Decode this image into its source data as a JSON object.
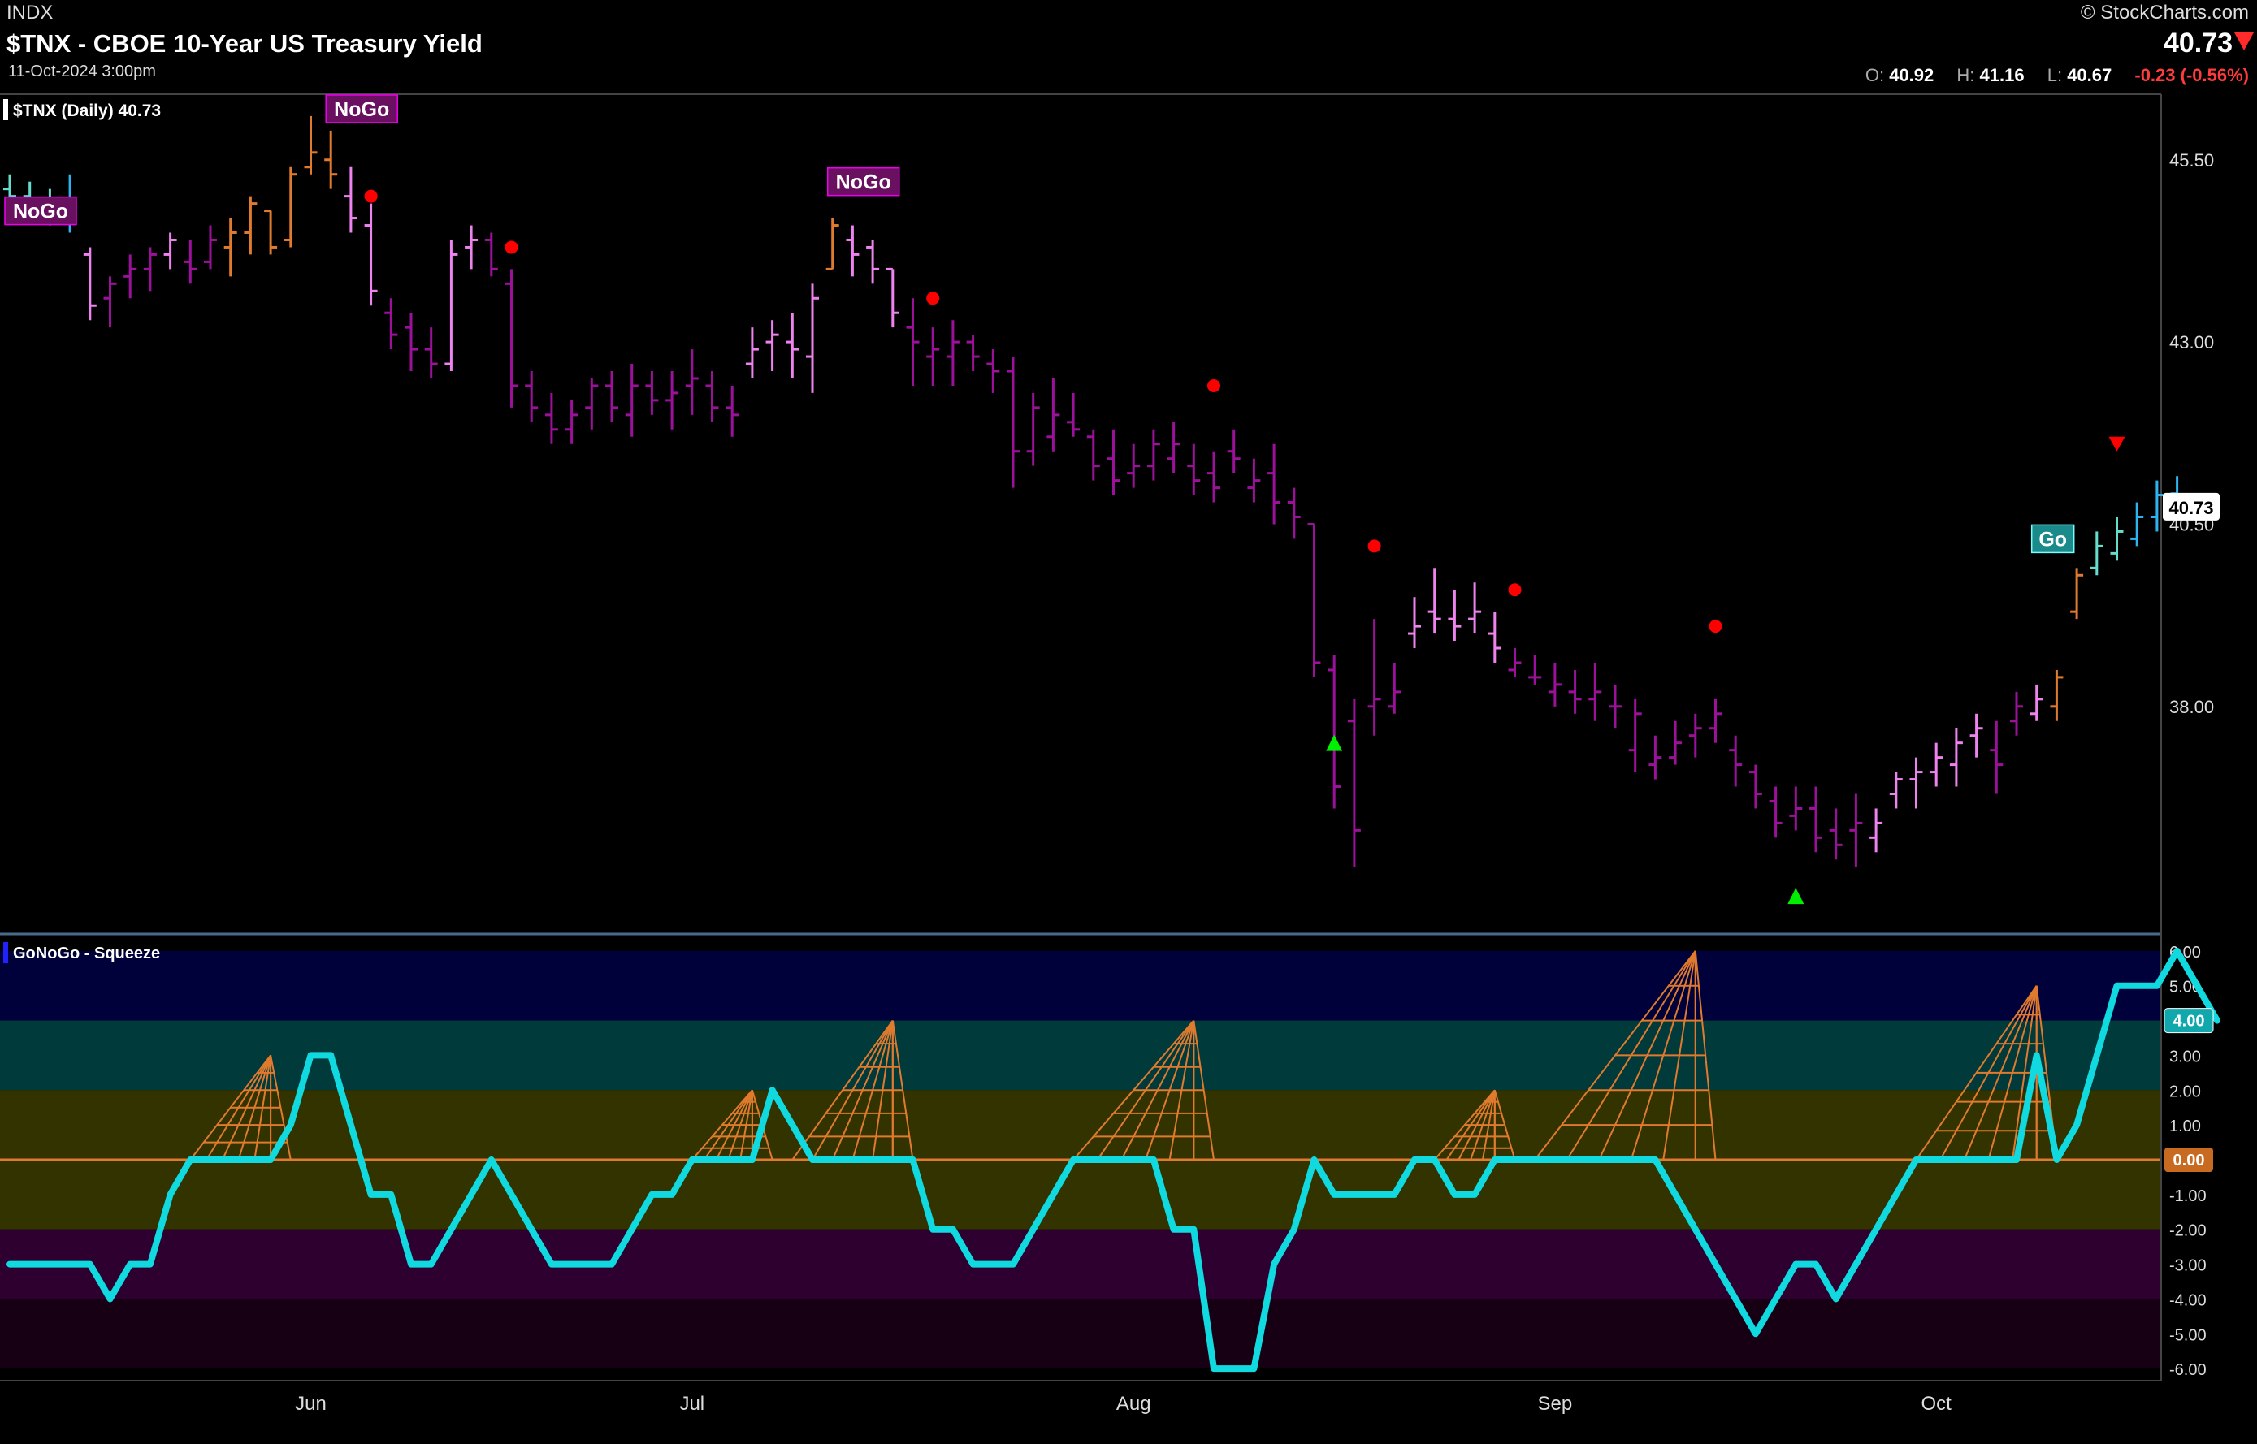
{
  "header": {
    "exchange": "INDX",
    "title": "$TNX - CBOE 10-Year US Treasury Yield",
    "date": "11-Oct-2024 3:00pm",
    "brand": "© StockCharts.com",
    "last": "40.73",
    "ohlc": {
      "o_label": "O:",
      "o": "40.92",
      "h_label": "H:",
      "h": "41.16",
      "l_label": "L:",
      "l": "40.67",
      "change": "-0.23 (-0.56%)"
    }
  },
  "colors": {
    "background": "#000000",
    "strong_nogo": "#9b119a",
    "weak_nogo": "#ee82ee",
    "nogo_amber": "#e07a2e",
    "weak_go": "#66ddcc",
    "strong_go": "#2db3f0",
    "oscillator": "#11d9e0",
    "squeeze": "#e07a2e",
    "zero_line": "#e07a2e",
    "down_dot": "#ff0000",
    "up_triangle": "#00ee00"
  },
  "chart_data": [
    {
      "type": "ohlc",
      "title": "$TNX (Daily) 40.73",
      "ylim": [
        34.9,
        46.4
      ],
      "yticks": [
        38.0,
        43.0,
        45.5
      ],
      "yticks_partial": [
        40.5
      ],
      "price_badge": "40.73",
      "xticks": [
        {
          "label": "Jun",
          "bar": 15
        },
        {
          "label": "Jul",
          "bar": 34
        },
        {
          "label": "Aug",
          "bar": 56
        },
        {
          "label": "Sep",
          "bar": 77
        },
        {
          "label": "Oct",
          "bar": 96
        }
      ],
      "bars": [
        [
          45.1,
          45.3,
          44.8,
          45.0,
          "wgo"
        ],
        [
          45.0,
          45.2,
          44.7,
          44.9,
          "wgo"
        ],
        [
          44.9,
          45.1,
          44.6,
          44.8,
          "wgo"
        ],
        [
          44.8,
          45.3,
          44.5,
          44.7,
          "sgo"
        ],
        [
          44.2,
          44.3,
          43.3,
          43.5,
          "wnogo"
        ],
        [
          43.6,
          43.9,
          43.2,
          43.8,
          "snogo"
        ],
        [
          43.9,
          44.2,
          43.6,
          44.0,
          "snogo"
        ],
        [
          44.0,
          44.3,
          43.7,
          44.2,
          "snogo"
        ],
        [
          44.2,
          44.5,
          44.0,
          44.4,
          "wnogo"
        ],
        [
          44.1,
          44.4,
          43.8,
          44.0,
          "snogo"
        ],
        [
          44.1,
          44.6,
          44.0,
          44.4,
          "snogo"
        ],
        [
          44.3,
          44.7,
          43.9,
          44.5,
          "amber"
        ],
        [
          44.5,
          45.0,
          44.2,
          44.9,
          "amber"
        ],
        [
          44.8,
          44.8,
          44.2,
          44.3,
          "amber"
        ],
        [
          44.4,
          45.4,
          44.3,
          45.3,
          "amber"
        ],
        [
          45.4,
          46.1,
          45.3,
          45.6,
          "amber"
        ],
        [
          45.5,
          45.9,
          45.1,
          45.3,
          "amber"
        ],
        [
          45.0,
          45.4,
          44.5,
          44.7,
          "wnogo"
        ],
        [
          44.6,
          44.9,
          43.5,
          43.7,
          "wnogo"
        ],
        [
          43.4,
          43.6,
          42.9,
          43.1,
          "snogo"
        ],
        [
          43.2,
          43.4,
          42.6,
          42.9,
          "snogo"
        ],
        [
          42.9,
          43.2,
          42.5,
          42.7,
          "snogo"
        ],
        [
          42.7,
          44.4,
          42.6,
          44.2,
          "wnogo"
        ],
        [
          44.3,
          44.6,
          44.0,
          44.4,
          "wnogo"
        ],
        [
          44.4,
          44.5,
          43.9,
          44.0,
          "snogo"
        ],
        [
          43.8,
          44.0,
          42.1,
          42.4,
          "snogo"
        ],
        [
          42.4,
          42.6,
          41.9,
          42.1,
          "snogo"
        ],
        [
          42.0,
          42.3,
          41.6,
          41.8,
          "snogo"
        ],
        [
          41.8,
          42.2,
          41.6,
          42.0,
          "snogo"
        ],
        [
          42.1,
          42.5,
          41.8,
          42.4,
          "snogo"
        ],
        [
          42.4,
          42.6,
          41.9,
          42.1,
          "snogo"
        ],
        [
          42.0,
          42.7,
          41.7,
          42.4,
          "snogo"
        ],
        [
          42.4,
          42.6,
          42.0,
          42.2,
          "snogo"
        ],
        [
          42.2,
          42.6,
          41.8,
          42.3,
          "snogo"
        ],
        [
          42.4,
          42.9,
          42.0,
          42.5,
          "snogo"
        ],
        [
          42.4,
          42.6,
          41.9,
          42.1,
          "snogo"
        ],
        [
          42.1,
          42.4,
          41.7,
          42.0,
          "snogo"
        ],
        [
          42.7,
          43.2,
          42.5,
          42.9,
          "wnogo"
        ],
        [
          43.0,
          43.3,
          42.6,
          43.1,
          "wnogo"
        ],
        [
          43.0,
          43.4,
          42.5,
          42.9,
          "wnogo"
        ],
        [
          42.8,
          43.8,
          42.3,
          43.6,
          "wnogo"
        ],
        [
          44.0,
          44.7,
          44.0,
          44.6,
          "amber"
        ],
        [
          44.4,
          44.6,
          43.9,
          44.2,
          "wnogo"
        ],
        [
          44.3,
          44.4,
          43.8,
          44.0,
          "wnogo"
        ],
        [
          44.0,
          44.0,
          43.2,
          43.4,
          "wnogo"
        ],
        [
          43.2,
          43.6,
          42.4,
          43.0,
          "snogo"
        ],
        [
          42.8,
          43.2,
          42.4,
          42.9,
          "snogo"
        ],
        [
          42.8,
          43.3,
          42.4,
          43.0,
          "snogo"
        ],
        [
          43.0,
          43.1,
          42.6,
          42.8,
          "snogo"
        ],
        [
          42.7,
          42.9,
          42.3,
          42.6,
          "snogo"
        ],
        [
          42.6,
          42.8,
          41.0,
          41.5,
          "snogo"
        ],
        [
          41.5,
          42.3,
          41.3,
          42.1,
          "snogo"
        ],
        [
          41.7,
          42.5,
          41.5,
          42.0,
          "snogo"
        ],
        [
          41.9,
          42.3,
          41.7,
          41.8,
          "snogo"
        ],
        [
          41.7,
          41.8,
          41.1,
          41.3,
          "snogo"
        ],
        [
          41.4,
          41.8,
          40.9,
          41.1,
          "snogo"
        ],
        [
          41.2,
          41.6,
          41.0,
          41.3,
          "snogo"
        ],
        [
          41.3,
          41.8,
          41.1,
          41.6,
          "snogo"
        ],
        [
          41.4,
          41.9,
          41.2,
          41.6,
          "snogo"
        ],
        [
          41.3,
          41.6,
          40.9,
          41.1,
          "snogo"
        ],
        [
          41.2,
          41.5,
          40.8,
          41.0,
          "snogo"
        ],
        [
          41.5,
          41.8,
          41.2,
          41.4,
          "snogo"
        ],
        [
          41.0,
          41.4,
          40.8,
          41.1,
          "snogo"
        ],
        [
          41.2,
          41.6,
          40.5,
          40.8,
          "snogo"
        ],
        [
          40.8,
          41.0,
          40.3,
          40.6,
          "snogo"
        ],
        [
          40.5,
          40.5,
          38.4,
          38.6,
          "snogo"
        ],
        [
          38.5,
          38.7,
          36.6,
          36.9,
          "snogo"
        ],
        [
          37.8,
          38.1,
          35.8,
          36.3,
          "snogo"
        ],
        [
          38.0,
          39.2,
          37.6,
          38.1,
          "snogo"
        ],
        [
          38.0,
          38.6,
          37.9,
          38.2,
          "snogo"
        ],
        [
          39.0,
          39.5,
          38.8,
          39.1,
          "wnogo"
        ],
        [
          39.3,
          39.9,
          39.0,
          39.2,
          "wnogo"
        ],
        [
          39.2,
          39.6,
          38.9,
          39.1,
          "wnogo"
        ],
        [
          39.2,
          39.7,
          39.0,
          39.3,
          "wnogo"
        ],
        [
          39.0,
          39.3,
          38.6,
          38.8,
          "wnogo"
        ],
        [
          38.5,
          38.8,
          38.4,
          38.6,
          "snogo"
        ],
        [
          38.4,
          38.7,
          38.3,
          38.4,
          "snogo"
        ],
        [
          38.2,
          38.6,
          38.0,
          38.3,
          "snogo"
        ],
        [
          38.2,
          38.5,
          37.9,
          38.1,
          "snogo"
        ],
        [
          38.1,
          38.6,
          37.8,
          38.2,
          "snogo"
        ],
        [
          38.0,
          38.3,
          37.7,
          38.0,
          "snogo"
        ],
        [
          37.4,
          38.1,
          37.1,
          37.9,
          "snogo"
        ],
        [
          37.2,
          37.6,
          37.0,
          37.3,
          "snogo"
        ],
        [
          37.3,
          37.8,
          37.2,
          37.5,
          "snogo"
        ],
        [
          37.6,
          37.9,
          37.3,
          37.7,
          "snogo"
        ],
        [
          37.7,
          38.1,
          37.5,
          37.9,
          "snogo"
        ],
        [
          37.4,
          37.6,
          36.9,
          37.2,
          "snogo"
        ],
        [
          37.1,
          37.2,
          36.6,
          36.8,
          "snogo"
        ],
        [
          36.7,
          36.9,
          36.2,
          36.4,
          "snogo"
        ],
        [
          36.5,
          36.9,
          36.3,
          36.6,
          "snogo"
        ],
        [
          36.6,
          36.9,
          36.0,
          36.2,
          "snogo"
        ],
        [
          36.3,
          36.6,
          35.9,
          36.1,
          "snogo"
        ],
        [
          36.3,
          36.8,
          35.8,
          36.4,
          "snogo"
        ],
        [
          36.2,
          36.6,
          36.0,
          36.4,
          "wnogo"
        ],
        [
          36.8,
          37.1,
          36.6,
          37.0,
          "wnogo"
        ],
        [
          37.0,
          37.3,
          36.6,
          37.1,
          "wnogo"
        ],
        [
          37.1,
          37.5,
          36.9,
          37.3,
          "wnogo"
        ],
        [
          37.2,
          37.7,
          36.9,
          37.5,
          "wnogo"
        ],
        [
          37.6,
          37.9,
          37.3,
          37.7,
          "wnogo"
        ],
        [
          37.4,
          37.8,
          36.8,
          37.2,
          "snogo"
        ],
        [
          37.8,
          38.2,
          37.6,
          38.0,
          "snogo"
        ],
        [
          37.9,
          38.3,
          37.8,
          38.1,
          "wnogo"
        ],
        [
          38.0,
          38.5,
          37.8,
          38.4,
          "amber"
        ],
        [
          39.3,
          39.9,
          39.2,
          39.8,
          "amber"
        ],
        [
          39.9,
          40.4,
          39.8,
          40.2,
          "wgo"
        ],
        [
          40.1,
          40.6,
          40.0,
          40.4,
          "wgo"
        ],
        [
          40.3,
          40.8,
          40.2,
          40.6,
          "sgo"
        ],
        [
          40.6,
          41.1,
          40.4,
          40.9,
          "sgo"
        ],
        [
          40.92,
          41.16,
          40.67,
          40.73,
          "sgo"
        ]
      ],
      "badges": [
        {
          "label": "NoGo",
          "bar": 0,
          "price": 44.8
        },
        {
          "label": "NoGo",
          "bar": 16,
          "price": 46.2
        },
        {
          "label": "NoGo",
          "bar": 41,
          "price": 45.2
        },
        {
          "label": "Go",
          "bar": 101,
          "price": 40.3
        }
      ],
      "down_dots": [
        {
          "bar": 18,
          "price": 45.0
        },
        {
          "bar": 25,
          "price": 44.3
        },
        {
          "bar": 46,
          "price": 43.6
        },
        {
          "bar": 60,
          "price": 42.4
        },
        {
          "bar": 68,
          "price": 40.2
        },
        {
          "bar": 75,
          "price": 39.6
        },
        {
          "bar": 85,
          "price": 39.1
        }
      ],
      "down_triangles": [
        {
          "bar": 105,
          "price": 41.6
        }
      ],
      "up_triangles": [
        {
          "bar": 66,
          "price": 37.5
        },
        {
          "bar": 89,
          "price": 35.4
        }
      ]
    },
    {
      "type": "line",
      "title": "GoNoGo - Squeeze",
      "ylim": [
        -6.3,
        6.3
      ],
      "yticks": [
        6,
        5,
        4,
        3,
        2,
        1,
        0,
        -1,
        -2,
        -3,
        -4,
        -5,
        -6
      ],
      "ytick_labels": [
        "6.00",
        "5.00",
        "4.00",
        "3.00",
        "2.00",
        "1.00",
        "0.00",
        "-1.00",
        "-2.00",
        "-3.00",
        "-4.00",
        "-5.00",
        "-6.00"
      ],
      "value_badge": "4.00",
      "zero_badge": "0.00",
      "zones": [
        {
          "from": 4,
          "to": 6,
          "color": "#00003a"
        },
        {
          "from": 2,
          "to": 4,
          "color": "#003a3a"
        },
        {
          "from": -2,
          "to": 2,
          "color": "#333300"
        },
        {
          "from": -4,
          "to": -2,
          "color": "#2d0030"
        },
        {
          "from": -6,
          "to": -4,
          "color": "#180014"
        }
      ],
      "oscillator": [
        -3,
        -3,
        -3,
        -3,
        -3,
        -4,
        -3,
        -3,
        -1,
        0,
        0,
        0,
        0,
        0,
        1,
        3,
        3,
        1,
        -1,
        -1,
        -3,
        -3,
        -2,
        -1,
        0,
        -1,
        -2,
        -3,
        -3,
        -3,
        -3,
        -2,
        -1,
        -1,
        0,
        0,
        0,
        0,
        2,
        1,
        0,
        0,
        0,
        0,
        0,
        0,
        -2,
        -2,
        -3,
        -3,
        -3,
        -2,
        -1,
        0,
        0,
        0,
        0,
        0,
        -2,
        -2,
        -6,
        -6,
        -6,
        -3,
        -2,
        0,
        -1,
        -1,
        -1,
        -1,
        0,
        0,
        -1,
        -1,
        0,
        0,
        0,
        0,
        0,
        0,
        0,
        0,
        0,
        -1,
        -2,
        -3,
        -4,
        -5,
        -4,
        -3,
        -3,
        -4,
        -3,
        -2,
        -1,
        0,
        0,
        0,
        0,
        0,
        0,
        3,
        0,
        1,
        3,
        5,
        5,
        5,
        6,
        5,
        4
      ],
      "squeeze": [
        {
          "from_bar": 9,
          "to_bar": 14,
          "peak_bar": 13,
          "peak": 3
        },
        {
          "from_bar": 34,
          "to_bar": 38,
          "peak_bar": 37,
          "peak": 2
        },
        {
          "from_bar": 39,
          "to_bar": 45,
          "peak_bar": 44,
          "peak": 4
        },
        {
          "from_bar": 53,
          "to_bar": 60,
          "peak_bar": 59,
          "peak": 4
        },
        {
          "from_bar": 71,
          "to_bar": 75,
          "peak_bar": 74,
          "peak": 2
        },
        {
          "from_bar": 76,
          "to_bar": 85,
          "peak_bar": 84,
          "peak": 6
        },
        {
          "from_bar": 95,
          "to_bar": 102,
          "peak_bar": 101,
          "peak": 5
        }
      ]
    }
  ]
}
